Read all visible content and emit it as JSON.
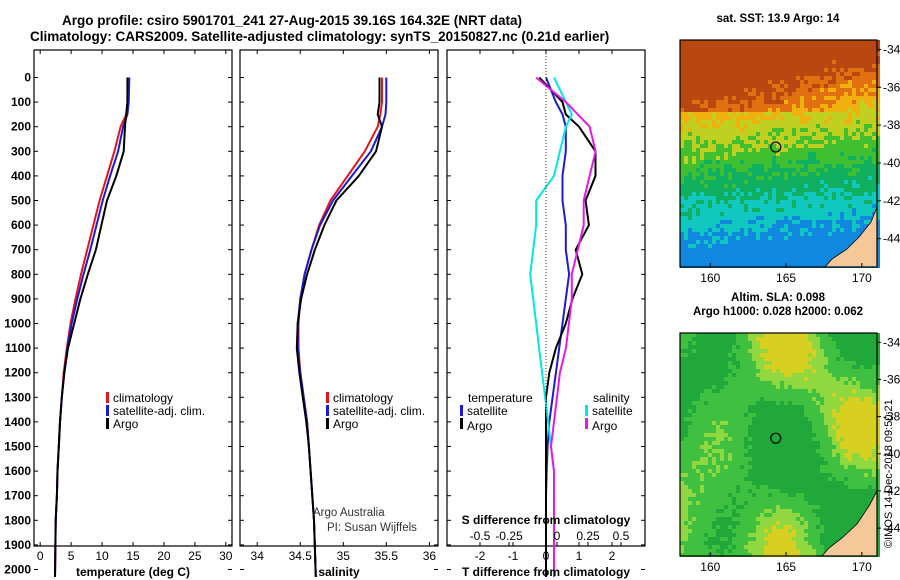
{
  "header": {
    "line1": "Argo profile: csiro 5901701_241 27-Aug-2015 39.16S 164.32E (NRT data)",
    "line2": "Climatology: CARS2009. Satellite-adjusted climatology: synTS_20150827.nc (0.21d earlier)"
  },
  "colors": {
    "climatology": "#e8121a",
    "satellite_adj": "#1b1bd6",
    "argo": "#000000",
    "sat_salinity": "#00e6e6",
    "argo_salinity": "#e619e6",
    "land": "#f5c89a"
  },
  "chart_data": [
    {
      "type": "line",
      "name": "temperature-panel",
      "xlabel": "temperature (deg C)",
      "ylabel": "",
      "xlim": [
        -1,
        31
      ],
      "ylim": [
        2050,
        0
      ],
      "x_ticks": [
        0,
        5,
        10,
        15,
        20,
        25,
        30
      ],
      "y_ticks": [
        0,
        100,
        200,
        300,
        400,
        500,
        600,
        700,
        800,
        900,
        1000,
        1100,
        1200,
        1300,
        1400,
        1500,
        1600,
        1700,
        1800,
        1900,
        2000
      ],
      "y_tick_labels": [
        "0",
        "100",
        "200",
        "300",
        "400",
        "500",
        "600",
        "700",
        "800",
        "900",
        "1000",
        "1100",
        "1200",
        "1300",
        "1400",
        "1500",
        "1600",
        "1700",
        "1800",
        "1900",
        "2000"
      ],
      "legend": [
        "climatology",
        "satellite-adj. clim.",
        "Argo"
      ],
      "series": [
        {
          "name": "climatology",
          "color": "#e8121a",
          "x": [
            14.3,
            14.2,
            13.9,
            13.0,
            12.0,
            10.8,
            9.6,
            8.6,
            7.6,
            6.6,
            5.7,
            4.9,
            4.3,
            3.8,
            3.5,
            3.2,
            3.0,
            2.8,
            2.7,
            2.5,
            2.4
          ],
          "y": [
            0,
            100,
            150,
            200,
            300,
            400,
            500,
            600,
            700,
            800,
            900,
            1000,
            1100,
            1200,
            1300,
            1400,
            1500,
            1600,
            1700,
            1800,
            2030
          ]
        },
        {
          "name": "satellite-adj. clim.",
          "color": "#1b1bd6",
          "x": [
            14.4,
            14.3,
            14.1,
            13.4,
            12.6,
            11.3,
            10.1,
            9.1,
            8.1,
            7.0,
            6.0,
            5.1,
            4.4,
            3.9,
            3.5,
            3.2,
            3.0,
            2.8,
            2.7,
            2.5,
            2.4
          ],
          "y": [
            0,
            100,
            150,
            200,
            300,
            400,
            500,
            600,
            700,
            800,
            900,
            1000,
            1100,
            1200,
            1300,
            1400,
            1500,
            1600,
            1700,
            1800,
            2030
          ]
        },
        {
          "name": "Argo",
          "color": "#000000",
          "x": [
            14.1,
            14.1,
            13.9,
            13.7,
            13.5,
            12.3,
            10.8,
            9.9,
            9.0,
            7.7,
            6.5,
            5.5,
            4.5,
            3.9,
            3.5,
            3.2,
            3.0,
            2.8,
            2.7,
            2.5,
            2.4
          ],
          "y": [
            0,
            100,
            150,
            200,
            300,
            400,
            500,
            600,
            700,
            800,
            900,
            1000,
            1100,
            1200,
            1300,
            1400,
            1500,
            1600,
            1700,
            1800,
            2030
          ]
        }
      ]
    },
    {
      "type": "line",
      "name": "salinity-panel",
      "xlabel": "salinity",
      "ylabel": "",
      "xlim": [
        33.8,
        36.1
      ],
      "ylim": [
        2050,
        0
      ],
      "x_ticks": [
        34,
        34.5,
        35,
        35.5,
        36
      ],
      "x_tick_labels": [
        "34",
        "34.5",
        "35",
        "35.5",
        "36"
      ],
      "legend": [
        "climatology",
        "satellite-adj. clim.",
        "Argo"
      ],
      "annotation": [
        "Argo Australia",
        "PI: Susan Wijffels"
      ],
      "series": [
        {
          "name": "climatology",
          "color": "#e8121a",
          "x": [
            35.45,
            35.45,
            35.43,
            35.4,
            35.25,
            35.05,
            34.85,
            34.72,
            34.63,
            34.55,
            34.5,
            34.48,
            34.48,
            34.5,
            34.54,
            34.58,
            34.6,
            34.62,
            34.64,
            34.66,
            34.68
          ],
          "y": [
            0,
            100,
            150,
            200,
            300,
            400,
            500,
            600,
            700,
            800,
            900,
            1000,
            1100,
            1200,
            1300,
            1400,
            1500,
            1600,
            1700,
            1800,
            2030
          ]
        },
        {
          "name": "satellite-adj. clim.",
          "color": "#1b1bd6",
          "x": [
            35.5,
            35.5,
            35.49,
            35.45,
            35.32,
            35.1,
            34.88,
            34.73,
            34.63,
            34.55,
            34.5,
            34.47,
            34.47,
            34.5,
            34.54,
            34.58,
            34.6,
            34.62,
            34.64,
            34.66,
            34.68
          ],
          "y": [
            0,
            100,
            150,
            200,
            300,
            400,
            500,
            600,
            700,
            800,
            900,
            1000,
            1100,
            1200,
            1300,
            1400,
            1500,
            1600,
            1700,
            1800,
            2030
          ]
        },
        {
          "name": "Argo",
          "color": "#000000",
          "x": [
            35.42,
            35.42,
            35.4,
            35.45,
            35.38,
            35.18,
            34.92,
            34.78,
            34.67,
            34.58,
            34.51,
            34.47,
            34.46,
            34.49,
            34.53,
            34.57,
            34.6,
            34.62,
            34.64,
            34.66,
            34.68
          ],
          "y": [
            0,
            100,
            150,
            200,
            300,
            400,
            500,
            600,
            700,
            800,
            900,
            1000,
            1100,
            1200,
            1300,
            1400,
            1500,
            1600,
            1700,
            1800,
            2030
          ]
        }
      ]
    },
    {
      "type": "line",
      "name": "difference-panel",
      "xlabel": "T difference from climatology",
      "xlabel2": "S difference from climatology",
      "xlim": [
        -3,
        3
      ],
      "ylim": [
        2050,
        0
      ],
      "x_ticks": [
        -2,
        -1,
        0,
        1,
        2
      ],
      "x_tick_labels": [
        "-2",
        "-1",
        "0",
        "1",
        "2"
      ],
      "s_ticks": [
        -0.5,
        -0.25,
        0,
        0.25,
        0.5
      ],
      "s_tick_labels": [
        "-0.5",
        "-0.25",
        "0",
        "0.25",
        "0.5"
      ],
      "legend_left": [
        "temperature",
        "satellite",
        "Argo"
      ],
      "legend_right": [
        "salinity",
        "satellite",
        "Argo"
      ],
      "series": [
        {
          "name": "satellite",
          "quantity": "temperature",
          "color": "#1b1bd6",
          "x": [
            0,
            0.3,
            0.5,
            0.6,
            0.6,
            0.5,
            0.5,
            0.6,
            0.6,
            0.7,
            0.6,
            0.5,
            0.4,
            0.3,
            0.2,
            0.1,
            0.05,
            0.02,
            0.0,
            0.0,
            0.0
          ],
          "y": [
            0,
            100,
            150,
            200,
            300,
            400,
            500,
            600,
            700,
            800,
            900,
            1000,
            1100,
            1200,
            1300,
            1400,
            1500,
            1600,
            1700,
            1800,
            2030
          ]
        },
        {
          "name": "Argo",
          "quantity": "temperature",
          "color": "#000000",
          "x": [
            -0.2,
            0.5,
            0.6,
            1.0,
            1.5,
            1.5,
            1.2,
            1.3,
            0.9,
            1.1,
            0.8,
            0.6,
            0.3,
            0.1,
            0.0,
            0.0,
            0.0,
            0.0,
            0.0,
            0.0,
            0.0
          ],
          "y": [
            0,
            100,
            150,
            200,
            300,
            400,
            500,
            600,
            700,
            800,
            900,
            1000,
            1100,
            1200,
            1300,
            1400,
            1500,
            1600,
            1700,
            1800,
            2030
          ]
        },
        {
          "name": "satellite",
          "quantity": "salinity",
          "color": "#00e6e6",
          "x": [
            0,
            0.2,
            0.3,
            0.2,
            0.1,
            0.0,
            -0.3,
            -0.3,
            -0.35,
            -0.4,
            -0.35,
            -0.3,
            -0.25,
            -0.2,
            -0.15,
            -0.1,
            -0.05,
            0.0,
            0.0,
            0.0,
            0.0
          ],
          "y": [
            0,
            100,
            150,
            200,
            300,
            400,
            500,
            600,
            700,
            800,
            900,
            1000,
            1100,
            1200,
            1300,
            1400,
            1500,
            1600,
            1700,
            1800,
            2030
          ]
        },
        {
          "name": "Argo",
          "quantity": "salinity",
          "color": "#e619e6",
          "x": [
            -0.3,
            0.2,
            0.4,
            0.6,
            0.7,
            0.6,
            0.5,
            0.5,
            0.4,
            0.3,
            0.3,
            0.25,
            0.2,
            0.1,
            0.05,
            0.0,
            -0.05,
            0.0,
            0.0,
            0.0,
            0.0
          ],
          "y": [
            0,
            100,
            150,
            200,
            300,
            400,
            500,
            600,
            700,
            800,
            900,
            1000,
            1100,
            1200,
            1300,
            1400,
            1500,
            1600,
            1700,
            1800,
            2030
          ]
        }
      ]
    },
    {
      "type": "heatmap",
      "name": "sst-map",
      "title": "sat. SST: 13.9 Argo: 14",
      "xlim": [
        158,
        171
      ],
      "ylim": [
        -45.5,
        -33.5
      ],
      "x_ticks": [
        160,
        165,
        170
      ],
      "y_ticks": [
        -34,
        -36,
        -38,
        -40,
        -42,
        -44
      ],
      "float_position": [
        164.32,
        -39.16
      ]
    },
    {
      "type": "heatmap",
      "name": "sla-map",
      "title_line1": "Altim. SLA: 0.098",
      "title_line2": "Argo h1000: 0.028 h2000: 0.062",
      "xlim": [
        158,
        171
      ],
      "ylim": [
        -45.5,
        -33.5
      ],
      "x_ticks": [
        160,
        165,
        170
      ],
      "y_ticks": [
        -34,
        -36,
        -38,
        -40,
        -42,
        -44
      ],
      "float_position": [
        164.32,
        -39.16
      ]
    }
  ],
  "footer": {
    "stamp": "©IMOS 14-Dec-2018 09:50:21"
  }
}
